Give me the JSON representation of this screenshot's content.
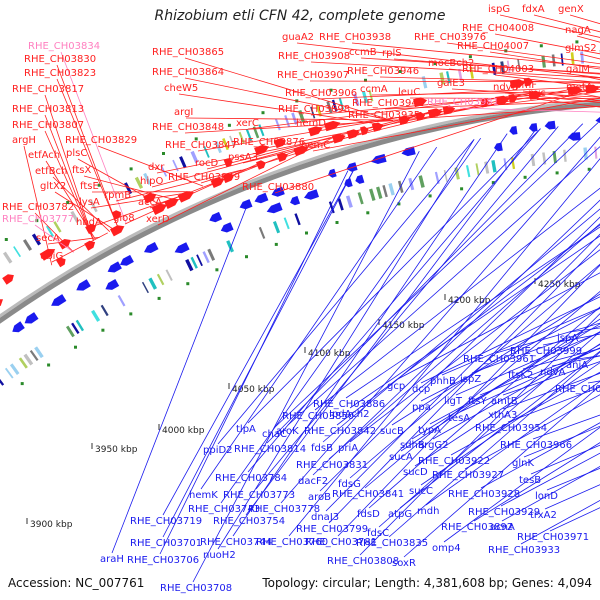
{
  "header": {
    "title": "Rhizobium etli CFN 42, complete genome"
  },
  "footer": {
    "accession": "Accession: NC_007761",
    "summary": "Topology: circular; Length: 4,381,608 bp; Genes: 4,094"
  },
  "colors": {
    "forward_gene": "#ff2020",
    "reverse_gene": "#1a1aee",
    "highlight_gene": "#ff80c0",
    "backbone": "#8a8a8a",
    "ticks": "#2a8a2a"
  },
  "axis_labels": [
    "3900 kbp",
    "3950 kbp",
    "4000 kbp",
    "4050 kbp",
    "4100 kbp",
    "4150 kbp",
    "4200 kbp",
    "4250 kbp"
  ],
  "forward_labels": [
    "RHE_CH03834",
    "RHE_CH03830",
    "RHE_CH03823",
    "RHE_CH03817",
    "RHE_CH03813",
    "RHE_CH03807",
    "argH",
    "etfAch",
    "etfBch",
    "gltX2",
    "RHE_CH03782",
    "RHE_CH03777",
    "secA",
    "ubiG",
    "RHE_CH03829",
    "plsC",
    "ftsX",
    "ftsE",
    "lysA",
    "hbdA",
    "rpmB",
    "glo8",
    "RHE_CH03865",
    "RHE_CH03864",
    "cheW5",
    "argI",
    "RHE_CH03848",
    "RHE_CH03847",
    "dxr",
    "hipO",
    "accA",
    "xerD",
    "RHE_CH03849",
    "rocD",
    "pssA3",
    "RHE_CH03876",
    "xerC",
    "RHE_CH03880",
    "guaA2",
    "RHE_CH03908",
    "RHE_CH03907",
    "RHE_CH03906",
    "RHE_CH03898",
    "hemD",
    "hemC",
    "RHE_CH03938",
    "ccmB",
    "rplS",
    "RHE_CH03946",
    "ccmA",
    "RHE_CH03941",
    "RHE_CH03935",
    "leuC",
    "RHE_CH03976",
    "mocBch2",
    "galE3",
    "RHE_CH03981",
    "ispG",
    "fdxA",
    "RHE_CH04008",
    "RHE_CH04007",
    "RHE_CH04003",
    "ndvB",
    "rpmF",
    "pyc",
    "genX",
    "nagA",
    "glmS2",
    "galM",
    "metA"
  ],
  "reverse_labels": [
    "ispA",
    "RHE_CH03999",
    "aniA",
    "ndvA",
    "RHE_CH04004",
    "RHE_CH03961",
    "ftsK2",
    "gcp",
    "dcp",
    "phhB",
    "ispZ",
    "RHE_CH03886",
    "IpdAch2",
    "ppa",
    "ligT",
    "ftsY",
    "amtB",
    "xthA3",
    "RHE_CH03850",
    "RHE_CH03842",
    "sucB",
    "sdhB",
    "tesA",
    "typA",
    "RHE_CH03954",
    "aroK",
    "fdsB",
    "priA",
    "sucA",
    "argG2",
    "RHE_CH03966",
    "RHE_CH03814",
    "sucD",
    "RHE_CH03922",
    "glnK",
    "tlpA",
    "chaC",
    "RHE_CH03831",
    "RHE_CH03927",
    "tesB",
    "ppiD2",
    "RHE_CH03784",
    "dacF2",
    "fdsG",
    "sucC",
    "RHE_CH03928",
    "lonD",
    "hemK",
    "RHE_CH03773",
    "aroB",
    "RHE_CH03841",
    "mdh",
    "RHE_CH03929",
    "trxA2",
    "RHE_CH03743",
    "RHE_CH03778",
    "fdsD",
    "atpG",
    "RHE_CH03892",
    "acnA",
    "RHE_CH03719",
    "RHE_CH03754",
    "dnaJ3",
    "RHE_CH03799",
    "fdsC",
    "RHE_CH03835",
    "omp4",
    "RHE_CH03971",
    "RHE_CH03701",
    "RHE_CH03744",
    "RHE_CH03760",
    "RHE_CH03781",
    "RHE_CH03808",
    "RHE_CH03933",
    "RHE_CH03706",
    "nuoH2",
    "soxR",
    "araH",
    "RHE_CH03708"
  ]
}
